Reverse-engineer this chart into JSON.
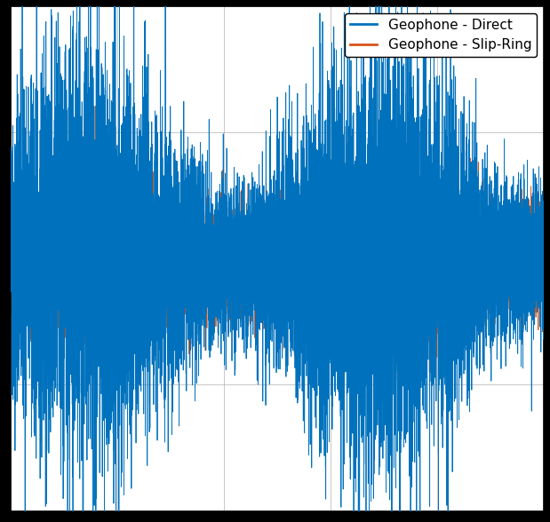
{
  "title": "",
  "xlabel": "",
  "ylabel": "",
  "legend": [
    "Geophone - Direct",
    "Geophone - Slip-Ring"
  ],
  "colors": [
    "#0072BD",
    "#D95319"
  ],
  "line_width": 0.6,
  "background_color": "#ffffff",
  "grid_color": "#b0b0b0",
  "n_samples": 10000,
  "seed_direct": 42,
  "seed_slipring": 7,
  "amp_direct": 0.28,
  "amp_slipring": 0.13,
  "mod_direct_amp": 0.45,
  "mod_direct_freq": 0.00018,
  "mod_slipring_amp": 0.25,
  "mod_slipring_freq": 0.00018,
  "ylim": [
    -1.0,
    1.0
  ],
  "xlim": [
    0,
    10000
  ],
  "figsize": [
    6.19,
    5.88
  ],
  "dpi": 100,
  "legend_fontsize": 11,
  "legend_loc": "upper right",
  "spine_color": "#000000"
}
